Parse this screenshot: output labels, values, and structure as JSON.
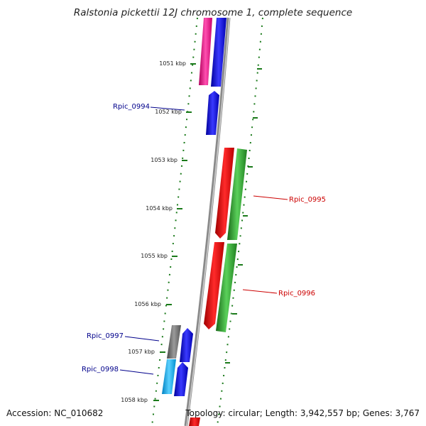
{
  "title": "Ralstonia pickettii 12J chromosome 1, complete sequence",
  "footer": {
    "accession": "Accession: NC_010682",
    "summary": "Topology: circular; Length: 3,942,557 bp; Genes: 3,767"
  },
  "colors": {
    "backbone": "#8a8a8a",
    "tick": "#1a7a1a",
    "label_forward": "#cc0000",
    "label_reverse": "#00008b",
    "magenta": "#ff1493",
    "blue": "#0000ff",
    "red": "#ff0000",
    "green": "#2ea82e",
    "grey": "#707070",
    "cyan": "#1ab0ff"
  },
  "ticks": [
    {
      "label": "1051 kbp"
    },
    {
      "label": "1052 kbp"
    },
    {
      "label": "1053 kbp"
    },
    {
      "label": "1054 kbp"
    },
    {
      "label": "1055 kbp"
    },
    {
      "label": "1056 kbp"
    },
    {
      "label": "1057 kbp"
    },
    {
      "label": "1058 kbp"
    }
  ],
  "genes": [
    {
      "id": "Rpic_0994",
      "strand": "reverse"
    },
    {
      "id": "Rpic_0995",
      "strand": "forward"
    },
    {
      "id": "Rpic_0996",
      "strand": "forward"
    },
    {
      "id": "Rpic_0997",
      "strand": "reverse"
    },
    {
      "id": "Rpic_0998",
      "strand": "reverse"
    }
  ]
}
